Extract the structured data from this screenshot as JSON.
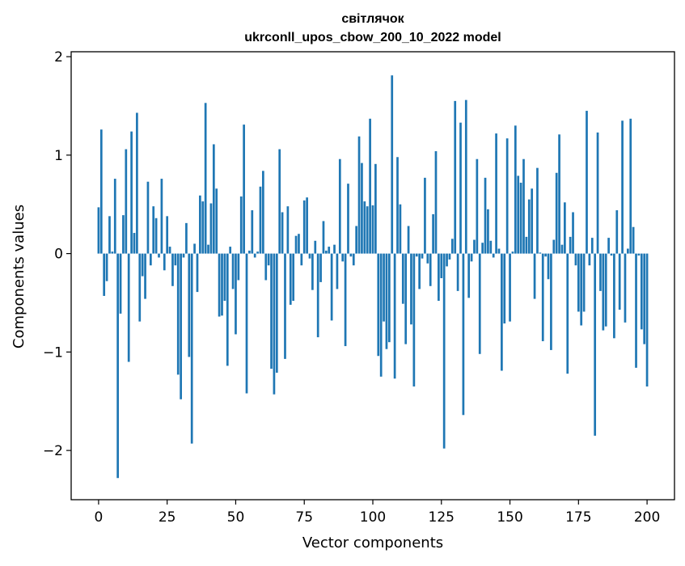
{
  "chart_data": {
    "type": "bar",
    "title": "світлячок",
    "subtitle": "ukrconll_upos_cbow_200_10_2022 model",
    "xlabel": "Vector components",
    "ylabel": "Components values",
    "xlim": [
      -10,
      210
    ],
    "ylim": [
      -2.5,
      2.05
    ],
    "xticks": [
      0,
      25,
      50,
      75,
      100,
      125,
      150,
      175,
      200
    ],
    "xtick_labels": [
      "0",
      "25",
      "50",
      "75",
      "100",
      "125",
      "150",
      "175",
      "200"
    ],
    "yticks": [
      -2,
      -1,
      0,
      1,
      2
    ],
    "ytick_labels": [
      "−2",
      "−1",
      "0",
      "1",
      "2"
    ],
    "grid": false,
    "legend": "none",
    "bar_color": "#1f77b4",
    "values": [
      0.47,
      1.26,
      -0.43,
      -0.28,
      0.38,
      0.02,
      0.76,
      -2.28,
      -0.61,
      0.39,
      1.06,
      -1.1,
      1.24,
      0.21,
      1.43,
      -0.69,
      -0.23,
      -0.46,
      0.73,
      -0.12,
      0.48,
      0.36,
      -0.04,
      0.76,
      -0.17,
      0.38,
      0.07,
      -0.33,
      -0.12,
      -1.23,
      -1.48,
      -0.04,
      0.31,
      -1.05,
      -1.93,
      0.1,
      -0.39,
      0.59,
      0.53,
      1.53,
      0.09,
      0.51,
      1.11,
      0.66,
      -0.64,
      -0.63,
      -0.48,
      -1.14,
      0.07,
      -0.36,
      -0.82,
      -0.27,
      0.58,
      1.31,
      -1.42,
      0.03,
      0.44,
      -0.04,
      0.02,
      0.68,
      0.84,
      -0.27,
      -0.12,
      -1.17,
      -1.43,
      -1.21,
      1.06,
      0.42,
      -1.07,
      0.48,
      -0.52,
      -0.48,
      0.18,
      0.2,
      -0.12,
      0.54,
      0.57,
      -0.05,
      -0.37,
      0.13,
      -0.85,
      -0.29,
      0.33,
      0.03,
      0.07,
      -0.68,
      0.09,
      -0.36,
      0.96,
      -0.08,
      -0.94,
      0.71,
      -0.03,
      -0.12,
      0.28,
      1.19,
      0.92,
      0.53,
      0.48,
      1.37,
      0.49,
      0.91,
      -1.04,
      -1.25,
      -0.69,
      -0.97,
      -0.9,
      1.81,
      -1.27,
      0.98,
      0.5,
      -0.51,
      -0.92,
      0.28,
      -0.72,
      -1.35,
      -0.03,
      -0.36,
      -0.05,
      0.77,
      -0.1,
      -0.33,
      0.4,
      1.04,
      -0.48,
      -0.25,
      -1.98,
      -0.13,
      -0.06,
      0.15,
      1.55,
      -0.38,
      1.33,
      -1.64,
      1.56,
      -0.45,
      -0.08,
      0.14,
      0.96,
      -1.02,
      0.11,
      0.77,
      0.45,
      0.13,
      -0.04,
      1.22,
      0.05,
      -1.19,
      -0.71,
      1.17,
      -0.69,
      0.02,
      1.3,
      0.79,
      0.72,
      0.96,
      0.17,
      0.55,
      0.66,
      -0.46,
      0.87,
      0.01,
      -0.89,
      -0.03,
      -0.26,
      -0.98,
      0.14,
      0.82,
      1.21,
      0.09,
      0.52,
      -1.22,
      0.17,
      0.42,
      -0.12,
      -0.59,
      -0.73,
      -0.59,
      1.45,
      -0.12,
      0.16,
      -1.85,
      1.23,
      -0.38,
      -0.78,
      -0.74,
      0.16,
      -0.02,
      -0.86,
      0.44,
      -0.57,
      1.35,
      -0.7,
      0.05,
      1.37,
      0.27,
      -1.16,
      -0.02,
      -0.77,
      -0.92,
      -1.35
    ]
  }
}
